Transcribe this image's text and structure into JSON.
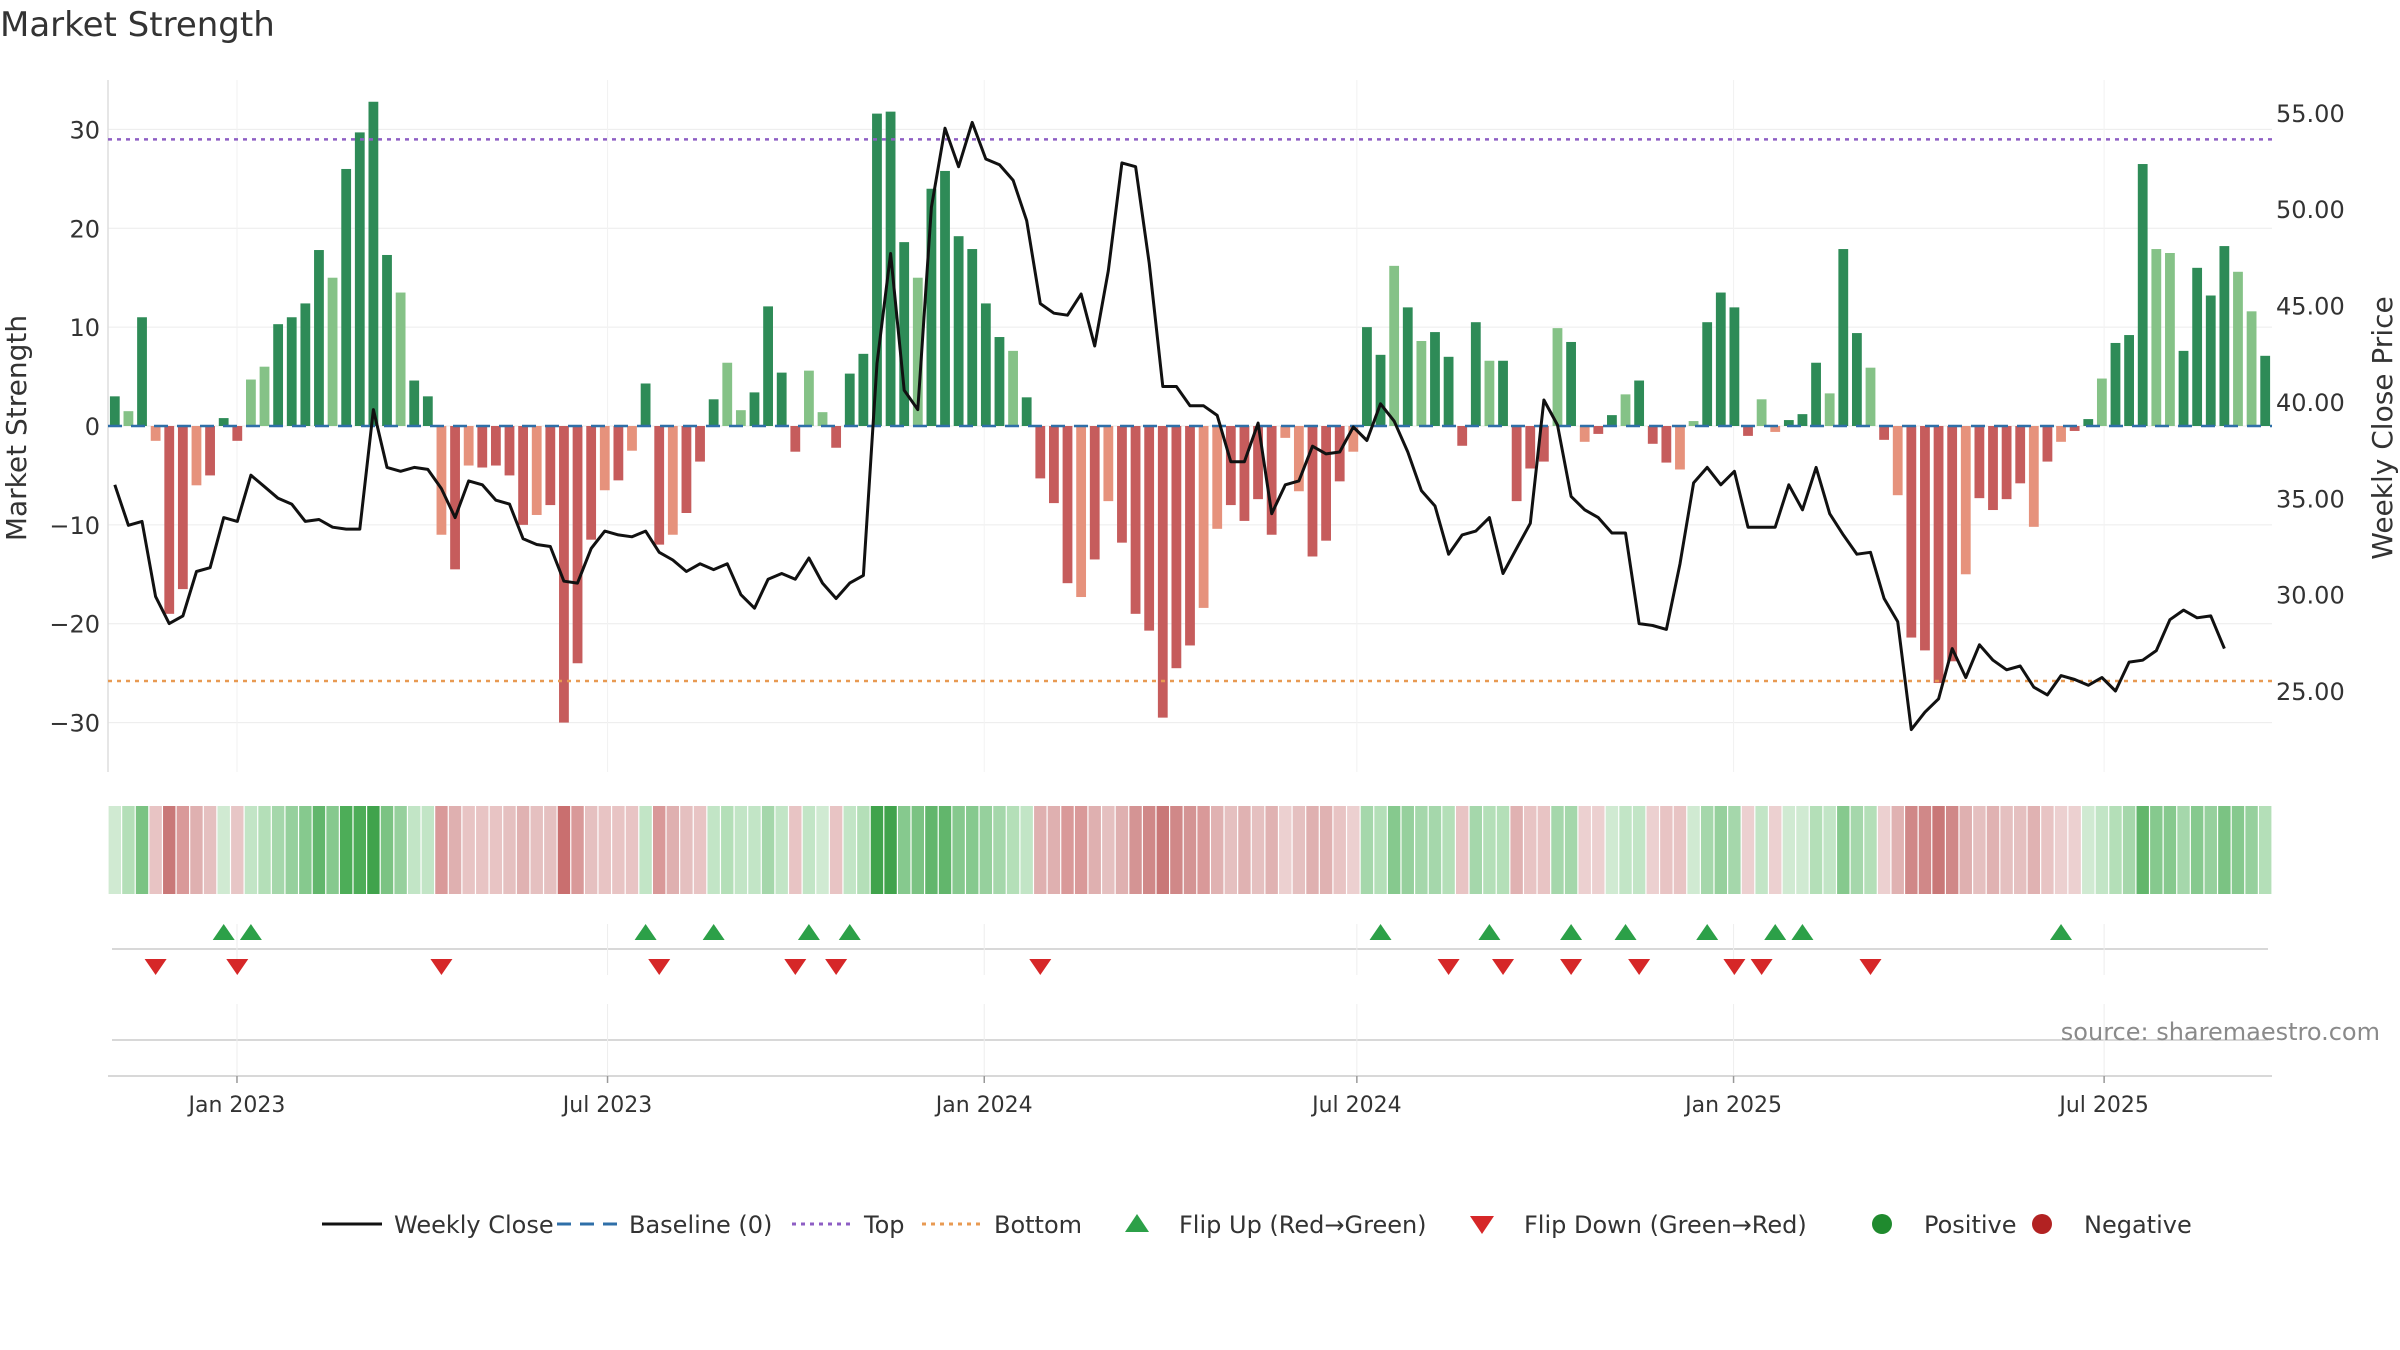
{
  "chart_data": {
    "type": "bar",
    "title": "Market Strength",
    "ylabel_left": "Market Strength",
    "ylabel_right": "Weekly Close Price",
    "source": "source: sharemaestro.com",
    "left_yticks": [
      30,
      20,
      10,
      0,
      -10,
      -20,
      -30
    ],
    "left_ytick_labels": [
      "30",
      "20",
      "10",
      "0",
      "−10",
      "−20",
      "−30"
    ],
    "left_ylim": [
      -35,
      35
    ],
    "right_yticks": [
      55,
      50,
      45,
      40,
      35,
      30,
      25
    ],
    "right_ytick_labels": [
      "55.00",
      "50.00",
      "45.00",
      "40.00",
      "35.00",
      "30.00",
      "25.00"
    ],
    "right_ylim": [
      20.8,
      56.7
    ],
    "top_line": 29,
    "bottom_line": -25.8,
    "x_start": "2022-10-30",
    "x_end": "2025-09-21",
    "x_ticks": [
      {
        "date": "2023-01-01",
        "label": "Jan 2023"
      },
      {
        "date": "2023-07-01",
        "label": "Jul 2023"
      },
      {
        "date": "2024-01-01",
        "label": "Jan 2024"
      },
      {
        "date": "2024-07-01",
        "label": "Jul 2024"
      },
      {
        "date": "2025-01-01",
        "label": "Jan 2025"
      },
      {
        "date": "2025-07-01",
        "label": "Jul 2025"
      }
    ],
    "strength": [
      3,
      1.5,
      11,
      -1.5,
      -19,
      -16.5,
      -6,
      -5,
      0.8,
      -1.5,
      4.7,
      6,
      10.3,
      11,
      12.4,
      17.8,
      15,
      26,
      29.7,
      32.8,
      17.3,
      13.5,
      4.6,
      3,
      -11,
      -14.5,
      -4,
      -4.2,
      -4,
      -5,
      -10,
      -9,
      -8,
      -30,
      -24,
      -11.5,
      -6.5,
      -5.5,
      -2.5,
      4.3,
      -12,
      -11,
      -8.8,
      -3.6,
      2.7,
      6.4,
      1.6,
      3.4,
      12.1,
      5.4,
      -2.6,
      5.6,
      1.4,
      -2.2,
      5.3,
      7.3,
      31.6,
      31.8,
      18.6,
      15,
      24,
      25.8,
      19.2,
      17.9,
      12.4,
      9,
      7.6,
      2.9,
      -5.3,
      -7.8,
      -15.9,
      -17.3,
      -13.5,
      -7.6,
      -11.8,
      -19,
      -20.7,
      -29.5,
      -24.5,
      -22.2,
      -18.4,
      -10.4,
      -8,
      -9.6,
      -7.4,
      -11,
      -1.2,
      -6.6,
      -13.2,
      -11.6,
      -5.6,
      -2.6,
      10,
      7.2,
      16.2,
      12,
      8.6,
      9.5,
      7,
      -2,
      10.5,
      6.6,
      6.6,
      -7.6,
      -4.3,
      -3.6,
      9.9,
      8.5,
      -1.6,
      -0.8,
      1.1,
      3.2,
      4.6,
      -1.8,
      -3.7,
      -4.4,
      0.5,
      10.5,
      13.5,
      12,
      -1,
      2.7,
      -0.6,
      0.6,
      1.2,
      6.4,
      3.3,
      17.9,
      9.4,
      5.9,
      -1.4,
      -7,
      -21.4,
      -22.7,
      -26,
      -23.8,
      -15,
      -7.3,
      -8.5,
      -7.4,
      -5.8,
      -10.2,
      -3.6,
      -1.6,
      -0.5,
      0.7,
      4.8,
      8.4,
      9.2,
      26.5,
      17.9,
      17.5,
      7.6,
      16,
      13.2,
      18.2,
      15.6,
      11.6,
      7.1
    ],
    "weekly_close": [
      35.7,
      33.6,
      33.8,
      29.9,
      28.5,
      28.9,
      31.2,
      31.4,
      34,
      33.8,
      36.2,
      35.6,
      35,
      34.7,
      33.8,
      33.9,
      33.5,
      33.4,
      33.4,
      39.6,
      36.6,
      36.4,
      36.6,
      36.5,
      35.5,
      34,
      35.9,
      35.7,
      34.9,
      34.7,
      32.9,
      32.6,
      32.5,
      30.7,
      30.6,
      32.4,
      33.3,
      33.1,
      33,
      33.3,
      32.2,
      31.8,
      31.2,
      31.6,
      31.3,
      31.6,
      30,
      29.3,
      30.8,
      31.1,
      30.8,
      31.9,
      30.6,
      29.8,
      30.6,
      31,
      42,
      47.7,
      40.6,
      39.6,
      50.1,
      54.2,
      52.2,
      54.5,
      52.6,
      52.3,
      51.5,
      49.4,
      45.1,
      44.6,
      44.5,
      45.6,
      42.9,
      46.8,
      52.4,
      52.2,
      47.2,
      40.8,
      40.8,
      39.8,
      39.8,
      39.3,
      36.9,
      36.9,
      38.9,
      34.2,
      35.7,
      35.9,
      37.7,
      37.3,
      37.4,
      38.7,
      38,
      39.9,
      39,
      37.4,
      35.4,
      34.6,
      32.1,
      33.1,
      33.3,
      34,
      31.1,
      32.4,
      33.7,
      40.1,
      38.8,
      35.1,
      34.4,
      34,
      33.2,
      33.2,
      28.5,
      28.4,
      28.2,
      31.6,
      35.8,
      36.6,
      35.7,
      36.4,
      33.5,
      33.5,
      33.5,
      35.7,
      34.4,
      36.6,
      34.2,
      33.1,
      32.1,
      32.2,
      29.8,
      28.6,
      23,
      23.9,
      24.6,
      27.2,
      25.7,
      27.4,
      26.6,
      26.1,
      26.3,
      25.2,
      24.8,
      25.8,
      25.6,
      25.3,
      25.7,
      25,
      26.5,
      26.6,
      27.1,
      28.7,
      29.2,
      28.8,
      28.9,
      27.2
    ],
    "heat_colors": [
      "#d0ead2",
      "#b4dfb8",
      "#7bc383",
      "#e8c4c4",
      "#c97878",
      "#d99999",
      "#dfb0b0",
      "#e5c0c0",
      "#d0ead2",
      "#e7c6c6",
      "#c2e5c6",
      "#b4dfb8",
      "#a5d7ab",
      "#96d09d",
      "#86c98e",
      "#62b66c",
      "#86c98e",
      "#4dad58",
      "#4dad58",
      "#40a34c",
      "#7bc383",
      "#96d09d",
      "#c2e5c6",
      "#c2e5c6",
      "#d99999",
      "#dfb0b0",
      "#e8c4c4",
      "#e8c4c4",
      "#e8c4c4",
      "#e5c0c0",
      "#e0b2b2",
      "#e5c0c0",
      "#e5c0c0",
      "#c96f6f",
      "#d99999",
      "#e5c0c0",
      "#e8c4c4",
      "#e8c4c4",
      "#e8c4c4",
      "#c2e5c6",
      "#d99999",
      "#dfb0b0",
      "#e5c0c0",
      "#e8c4c4",
      "#c2e5c6",
      "#b4dfb8",
      "#c2e5c6",
      "#c2e5c6",
      "#a5d7ab",
      "#c2e5c6",
      "#e8c4c4",
      "#c2e5c6",
      "#d0ead2",
      "#e8c4c4",
      "#c2e5c6",
      "#b4dfb8",
      "#40a34c",
      "#40a34c",
      "#86c98e",
      "#7bc383",
      "#62b66c",
      "#62b66c",
      "#86c98e",
      "#86c98e",
      "#96d09d",
      "#a5d7ab",
      "#b4dfb8",
      "#c2e5c6",
      "#dfb0b0",
      "#dfb0b0",
      "#d99999",
      "#d99999",
      "#dfb0b0",
      "#e5c0c0",
      "#dfb0b0",
      "#d49494",
      "#d08888",
      "#c97878",
      "#d08888",
      "#d49494",
      "#d99999",
      "#e0b2b2",
      "#e5c0c0",
      "#e0b2b2",
      "#e5c0c0",
      "#e0b2b2",
      "#ecd0d0",
      "#e5c0c0",
      "#dfb0b0",
      "#e0b2b2",
      "#e8c4c4",
      "#ecd0d0",
      "#a5d7ab",
      "#b4dfb8",
      "#86c98e",
      "#96d09d",
      "#a5d7ab",
      "#a5d7ab",
      "#b4dfb8",
      "#e8c4c4",
      "#a5d7ab",
      "#b4dfb8",
      "#b4dfb8",
      "#e0b2b2",
      "#e8c4c4",
      "#e8c4c4",
      "#a5d7ab",
      "#a5d7ab",
      "#ecd0d0",
      "#ecd0d0",
      "#d0ead2",
      "#c2e5c6",
      "#c2e5c6",
      "#ecd0d0",
      "#e8c4c4",
      "#e8c4c4",
      "#d0ead2",
      "#a5d7ab",
      "#96d09d",
      "#a5d7ab",
      "#ecd0d0",
      "#c2e5c6",
      "#ecd0d0",
      "#d0ead2",
      "#d0ead2",
      "#b4dfb8",
      "#c2e5c6",
      "#86c98e",
      "#a5d7ab",
      "#b4dfb8",
      "#ecd0d0",
      "#e0b2b2",
      "#d08888",
      "#d08888",
      "#c97878",
      "#d08888",
      "#dfb0b0",
      "#e5c0c0",
      "#e0b2b2",
      "#e5c0c0",
      "#e5c0c0",
      "#e0b2b2",
      "#e8c4c4",
      "#ecd0d0",
      "#ecd0d0",
      "#d0ead2",
      "#c2e5c6",
      "#b4dfb8",
      "#a5d7ab",
      "#62b66c",
      "#86c98e",
      "#86c98e",
      "#a5d7ab",
      "#86c98e",
      "#96d09d",
      "#7bc383",
      "#86c98e",
      "#96d09d",
      "#b4dfb8"
    ],
    "flip_up_weeks": [
      8,
      10,
      39,
      44,
      51,
      54,
      93,
      101,
      107,
      111,
      117,
      122,
      124,
      143
    ],
    "flip_down_weeks": [
      3,
      9,
      24,
      40,
      50,
      53,
      68,
      98,
      102,
      107,
      112,
      119,
      121,
      129
    ],
    "legend": [
      {
        "label": "Weekly Close",
        "kind": "line-solid",
        "color": "#111111"
      },
      {
        "label": "Baseline (0)",
        "kind": "line-dash",
        "color": "#2f6fa8"
      },
      {
        "label": "Top",
        "kind": "line-dot",
        "color": "#8e5ec4"
      },
      {
        "label": "Bottom",
        "kind": "line-dot",
        "color": "#e89a52"
      },
      {
        "label": "Flip Up (Red→Green)",
        "kind": "triangle-up",
        "color": "#2ca048"
      },
      {
        "label": "Flip Down (Green→Red)",
        "kind": "triangle-down",
        "color": "#d62728"
      },
      {
        "label": "Positive",
        "kind": "circle",
        "color": "#1f8a2e"
      },
      {
        "label": "Negative",
        "kind": "circle",
        "color": "#b22222"
      }
    ],
    "colors": {
      "pos_dark": "#2e8b57",
      "pos_light": "#85c287",
      "neg_dark": "#c65c5c",
      "neg_light": "#e6927c",
      "line": "#111111",
      "baseline": "#2f6fa8",
      "top": "#8e5ec4",
      "bottom": "#e89a52",
      "flip_up": "#2ca048",
      "flip_down": "#d62728"
    }
  }
}
